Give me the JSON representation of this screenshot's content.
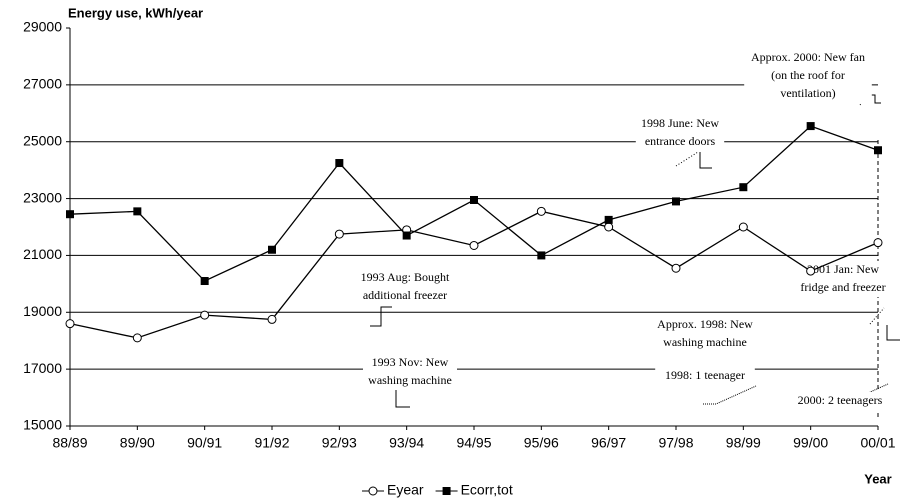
{
  "chart_data": {
    "type": "line",
    "y_label": "Energy use, kWh/year",
    "x_label": "Year",
    "categories": [
      "88/89",
      "89/90",
      "90/91",
      "91/92",
      "92/93",
      "93/94",
      "94/95",
      "95/96",
      "96/97",
      "97/98",
      "98/99",
      "99/00",
      "00/01"
    ],
    "series": [
      {
        "name": "Eyear",
        "color": "#000000",
        "marker": "circle",
        "values": [
          18600,
          18100,
          18900,
          18750,
          21750,
          21900,
          21350,
          22550,
          22000,
          20550,
          22000,
          20450,
          21450
        ]
      },
      {
        "name": "Ecorr,tot",
        "color": "#000000",
        "marker": "square",
        "values": [
          22450,
          22550,
          20100,
          21200,
          24250,
          21700,
          22950,
          21000,
          22250,
          22900,
          23400,
          25550,
          24700
        ]
      }
    ],
    "ylim": [
      15000,
      29000
    ],
    "yticks": [
      15000,
      17000,
      19000,
      21000,
      23000,
      25000,
      27000,
      29000
    ],
    "grid": true,
    "legend": "bottom",
    "annotations": [
      [
        "Approx. 2000: New fan",
        "(on the roof for",
        "ventilation)"
      ],
      [
        "1998 June: New",
        "entrance doors"
      ],
      [
        "1993 Aug: Bought",
        "additional freezer"
      ],
      [
        "Approx. 1998: New",
        "washing machine"
      ],
      [
        "2001 Jan: New",
        "fridge and freezer"
      ],
      [
        "1993 Nov: New",
        "washing machine"
      ],
      [
        "1998: 1 teenager"
      ],
      [
        "2000: 2 teenagers"
      ]
    ]
  }
}
